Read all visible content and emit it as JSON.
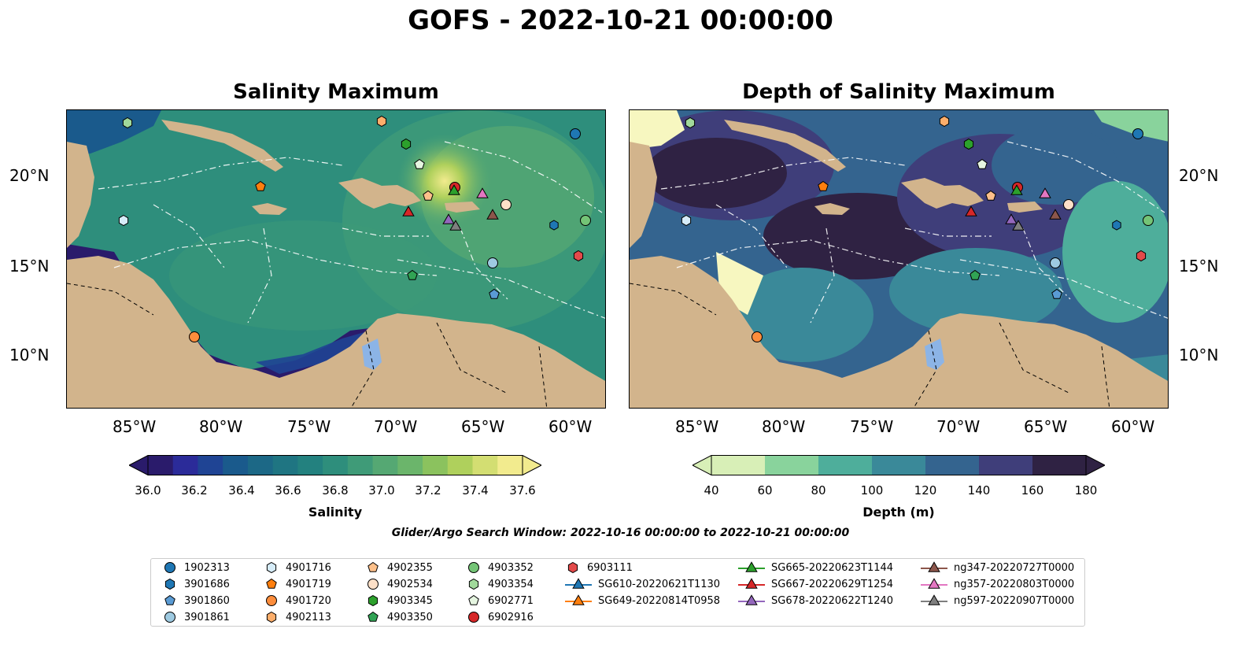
{
  "title": "GOFS - 2022-10-21 00:00:00",
  "panels": [
    {
      "title": "Salinity Maximum"
    },
    {
      "title": "Depth of Salinity Maximum"
    }
  ],
  "axes": {
    "x_ticks": [
      "85°W",
      "80°W",
      "75°W",
      "70°W",
      "65°W",
      "60°W"
    ],
    "y_ticks": [
      "20°N",
      "15°N",
      "10°N"
    ]
  },
  "colorbars": [
    {
      "label": "Salinity",
      "ticks": [
        "36.0",
        "36.2",
        "36.4",
        "36.6",
        "36.8",
        "37.0",
        "37.2",
        "37.4",
        "37.6"
      ],
      "colors": [
        "#2a1b6b",
        "#2b2b99",
        "#1f4494",
        "#1a5a8c",
        "#1c6886",
        "#1f7582",
        "#23817f",
        "#2e8e7c",
        "#3f9b78",
        "#55a873",
        "#6bb56b",
        "#8bc25e",
        "#afd05c",
        "#d3de72",
        "#f2eb8e"
      ]
    },
    {
      "label": "Depth (m)",
      "ticks": [
        "40",
        "60",
        "80",
        "100",
        "120",
        "140",
        "160",
        "180"
      ],
      "colors": [
        "#d8efb7",
        "#89d39c",
        "#4eae9b",
        "#3a8999",
        "#34648f",
        "#3f3e7a",
        "#2f2243"
      ]
    }
  ],
  "search_window": "Glider/Argo Search Window: 2022-10-16 00:00:00 to 2022-10-21 00:00:00",
  "legend": [
    {
      "label": "1902313",
      "marker": "circle",
      "color": "#1f77b4"
    },
    {
      "label": "3901686",
      "marker": "hexagon",
      "color": "#1f77b4"
    },
    {
      "label": "3901860",
      "marker": "pentagon",
      "color": "#5a9bd4"
    },
    {
      "label": "3901861",
      "marker": "circle",
      "color": "#9ecae1"
    },
    {
      "label": "4901716",
      "marker": "hexagon",
      "color": "#d6ecf8"
    },
    {
      "label": "4901719",
      "marker": "pentagon",
      "color": "#ff7f0e"
    },
    {
      "label": "4901720",
      "marker": "circle",
      "color": "#fd8d3c"
    },
    {
      "label": "4902113",
      "marker": "hexagon",
      "color": "#fdae6b"
    },
    {
      "label": "4902355",
      "marker": "pentagon",
      "color": "#fdc08a"
    },
    {
      "label": "4902534",
      "marker": "circle",
      "color": "#fde0c8"
    },
    {
      "label": "4903345",
      "marker": "hexagon",
      "color": "#2ca02c"
    },
    {
      "label": "4903350",
      "marker": "pentagon",
      "color": "#31a354"
    },
    {
      "label": "4903352",
      "marker": "circle",
      "color": "#74c476"
    },
    {
      "label": "4903354",
      "marker": "hexagon",
      "color": "#a1d99b"
    },
    {
      "label": "6902771",
      "marker": "pentagon",
      "color": "#e5f5e0"
    },
    {
      "label": "6902916",
      "marker": "circle",
      "color": "#d62728"
    },
    {
      "label": "6903111",
      "marker": "hexagon",
      "color": "#e34a4a"
    },
    {
      "label": "SG610-20220621T1130",
      "marker": "triangle",
      "color": "#1f77b4"
    },
    {
      "label": "SG649-20220814T0958",
      "marker": "triangle",
      "color": "#ff7f0e"
    },
    {
      "label": "SG665-20220623T1144",
      "marker": "triangle",
      "color": "#2ca02c"
    },
    {
      "label": "SG667-20220629T1254",
      "marker": "triangle",
      "color": "#d62728"
    },
    {
      "label": "SG678-20220622T1240",
      "marker": "triangle",
      "color": "#9467bd"
    },
    {
      "label": "ng347-20220727T0000",
      "marker": "triangle",
      "color": "#8c564b"
    },
    {
      "label": "ng357-20220803T0000",
      "marker": "triangle",
      "color": "#e377c2"
    },
    {
      "label": "ng597-20220907T0000",
      "marker": "triangle",
      "color": "#7f7f7f"
    }
  ],
  "map_colors": {
    "land": "#d2b48c",
    "lake": "#8cb4e6",
    "salinity_sea": "#2e8e7c",
    "salinity_deep": "#2a1b6b",
    "salinity_high": "#f2eb8e",
    "depth_sea": "#34648f",
    "depth_deep": "#2f2243",
    "depth_shallow": "#f7f7c0"
  }
}
